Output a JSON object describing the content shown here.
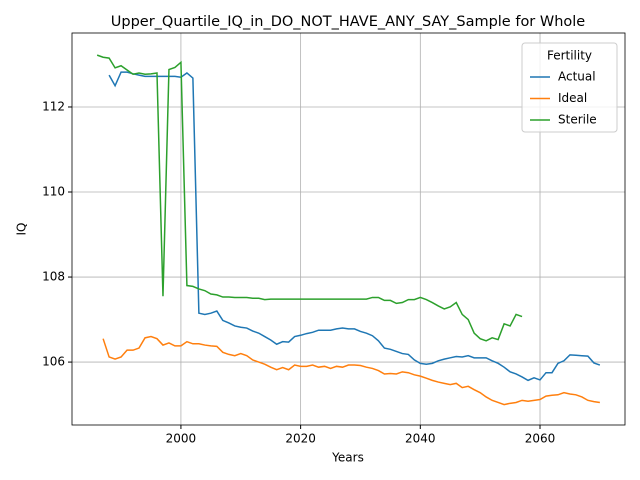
{
  "chart_data": {
    "type": "line",
    "title": "Upper_Quartile_IQ_in_DO_NOT_HAVE_ANY_SAY_Sample for Whole",
    "xlabel": "Years",
    "ylabel": "IQ",
    "legend_title": "Fertility",
    "legend": "upper right",
    "grid": true,
    "xlim": [
      1981.8,
      2074.2
    ],
    "ylim": [
      104.52,
      113.74
    ],
    "xticks": [
      2000,
      2020,
      2040,
      2060
    ],
    "yticks": [
      106,
      108,
      110,
      112
    ],
    "x": [
      1986,
      1987,
      1988,
      1989,
      1990,
      1991,
      1992,
      1993,
      1994,
      1995,
      1996,
      1997,
      1998,
      1999,
      2000,
      2001,
      2002,
      2003,
      2004,
      2005,
      2006,
      2007,
      2008,
      2009,
      2010,
      2011,
      2012,
      2013,
      2014,
      2015,
      2016,
      2017,
      2018,
      2019,
      2020,
      2021,
      2022,
      2023,
      2024,
      2025,
      2026,
      2027,
      2028,
      2029,
      2030,
      2031,
      2032,
      2033,
      2034,
      2035,
      2036,
      2037,
      2038,
      2039,
      2040,
      2041,
      2042,
      2043,
      2044,
      2045,
      2046,
      2047,
      2048,
      2049,
      2050,
      2051,
      2052,
      2053,
      2054,
      2055,
      2056,
      2057,
      2058,
      2059,
      2060,
      2061,
      2062,
      2063,
      2064,
      2065,
      2066,
      2067,
      2068,
      2069,
      2070
    ],
    "series": [
      {
        "name": "Actual",
        "color": "#1f77b4",
        "values": [
          null,
          null,
          112.75,
          112.5,
          112.82,
          112.82,
          112.78,
          112.75,
          112.72,
          112.72,
          112.72,
          112.72,
          112.72,
          112.72,
          112.7,
          112.8,
          112.68,
          107.15,
          107.12,
          107.15,
          107.2,
          106.98,
          106.92,
          106.85,
          106.82,
          106.8,
          106.73,
          106.68,
          106.6,
          106.52,
          106.42,
          106.48,
          106.47,
          106.6,
          106.63,
          106.67,
          106.7,
          106.75,
          106.75,
          106.75,
          106.78,
          106.8,
          106.78,
          106.78,
          106.72,
          106.68,
          106.62,
          106.5,
          106.33,
          106.3,
          106.25,
          106.2,
          106.18,
          106.05,
          105.97,
          105.95,
          105.97,
          106.03,
          106.07,
          106.1,
          106.13,
          106.12,
          106.15,
          106.1,
          106.1,
          106.1,
          106.03,
          105.97,
          105.88,
          105.77,
          105.72,
          105.65,
          105.57,
          105.63,
          105.58,
          105.75,
          105.75,
          105.97,
          106.03,
          106.17,
          106.16,
          106.15,
          106.14,
          105.98,
          105.93
        ]
      },
      {
        "name": "Ideal",
        "color": "#ff7f0e",
        "values": [
          null,
          106.55,
          106.12,
          106.07,
          106.12,
          106.28,
          106.28,
          106.33,
          106.57,
          106.6,
          106.55,
          106.4,
          106.45,
          106.38,
          106.38,
          106.48,
          106.43,
          106.43,
          106.4,
          106.38,
          106.37,
          106.23,
          106.18,
          106.15,
          106.2,
          106.15,
          106.05,
          106.0,
          105.95,
          105.88,
          105.82,
          105.87,
          105.82,
          105.93,
          105.9,
          105.9,
          105.93,
          105.88,
          105.9,
          105.85,
          105.9,
          105.88,
          105.93,
          105.93,
          105.92,
          105.88,
          105.85,
          105.8,
          105.72,
          105.73,
          105.72,
          105.77,
          105.75,
          105.7,
          105.67,
          105.62,
          105.57,
          105.53,
          105.5,
          105.47,
          105.5,
          105.4,
          105.43,
          105.35,
          105.28,
          105.18,
          105.1,
          105.05,
          105.0,
          105.03,
          105.05,
          105.1,
          105.08,
          105.1,
          105.12,
          105.2,
          105.22,
          105.23,
          105.28,
          105.25,
          105.23,
          105.18,
          105.1,
          105.07,
          105.05
        ]
      },
      {
        "name": "Sterile",
        "color": "#2ca02c",
        "values": [
          113.22,
          113.17,
          113.15,
          112.92,
          112.97,
          112.87,
          112.77,
          112.8,
          112.77,
          112.78,
          112.8,
          107.55,
          112.88,
          112.93,
          113.05,
          107.8,
          107.78,
          107.72,
          107.68,
          107.6,
          107.58,
          107.53,
          107.53,
          107.52,
          107.52,
          107.52,
          107.5,
          107.5,
          107.47,
          107.48,
          107.48,
          107.48,
          107.48,
          107.48,
          107.48,
          107.48,
          107.48,
          107.48,
          107.48,
          107.48,
          107.48,
          107.48,
          107.48,
          107.48,
          107.48,
          107.48,
          107.52,
          107.52,
          107.45,
          107.45,
          107.38,
          107.4,
          107.47,
          107.47,
          107.52,
          107.47,
          107.4,
          107.32,
          107.25,
          107.3,
          107.4,
          107.12,
          107.0,
          106.68,
          106.55,
          106.5,
          106.57,
          106.53,
          106.9,
          106.85,
          107.12,
          107.07,
          null,
          null,
          null,
          null,
          null,
          null,
          null,
          null,
          null,
          null,
          null,
          null,
          null
        ]
      }
    ]
  }
}
